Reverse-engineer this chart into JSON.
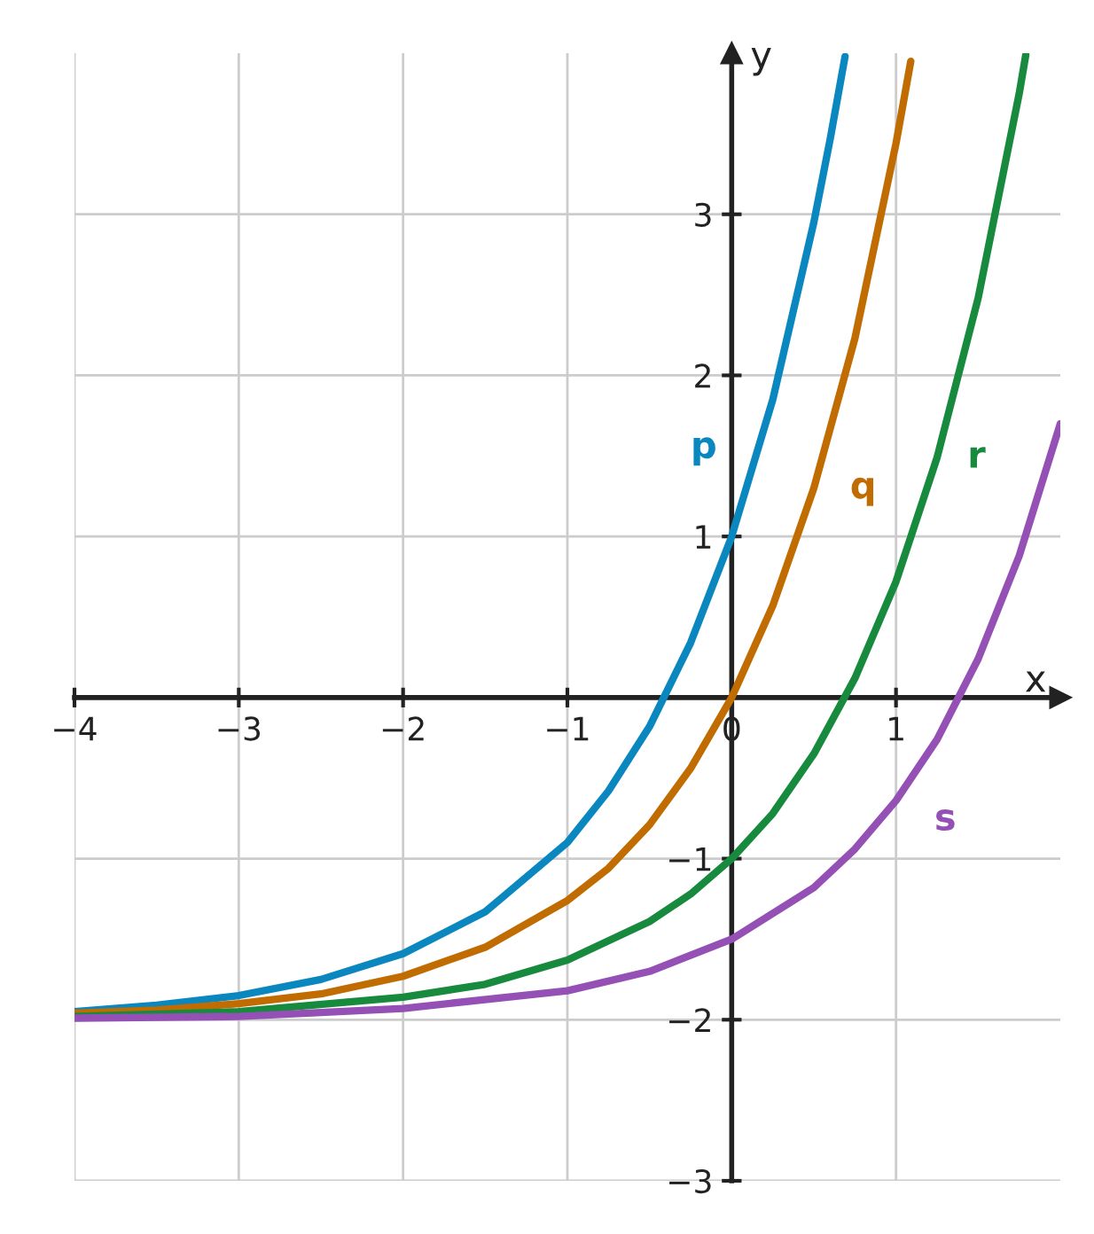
{
  "chart_data": {
    "type": "line",
    "xlabel": "x",
    "ylabel": "y",
    "xlim": [
      -4,
      2
    ],
    "ylim": [
      -3,
      4
    ],
    "xticks": [
      {
        "value": -4,
        "label": "−4"
      },
      {
        "value": -3,
        "label": "−3"
      },
      {
        "value": -2,
        "label": "−2"
      },
      {
        "value": -1,
        "label": "−1"
      },
      {
        "value": 0,
        "label": "0"
      },
      1
    ],
    "yticks": [
      {
        "value": -3,
        "label": "−3"
      },
      {
        "value": -2,
        "label": "−2"
      },
      {
        "value": -1,
        "label": "−1"
      },
      1,
      2,
      3
    ],
    "grid": true,
    "legend": false,
    "marker": "none",
    "line_style": "solid",
    "series": [
      {
        "name": "p",
        "color": "#0a87bf",
        "x": [
          -4,
          -3.5,
          -3,
          -2.5,
          -2,
          -1.5,
          -1,
          -0.75,
          -0.5,
          -0.25,
          0,
          0.25,
          0.5,
          0.6,
          0.69
        ],
        "values": [
          -1.95,
          -1.91,
          -1.85,
          -1.75,
          -1.59,
          -1.33,
          -0.9,
          -0.58,
          -0.18,
          0.34,
          1.0,
          1.85,
          2.95,
          3.47,
          3.98
        ]
      },
      {
        "name": "q",
        "color": "#c06c00",
        "x": [
          -4,
          -3.5,
          -3,
          -2.5,
          -2,
          -1.5,
          -1,
          -0.75,
          -0.5,
          -0.25,
          0,
          0.25,
          0.5,
          0.75,
          1,
          1.09
        ],
        "values": [
          -1.96,
          -1.94,
          -1.9,
          -1.84,
          -1.73,
          -1.55,
          -1.26,
          -1.06,
          -0.79,
          -0.44,
          0.0,
          0.57,
          1.3,
          2.23,
          3.44,
          3.95
        ]
      },
      {
        "name": "r",
        "color": "#178a3e",
        "x": [
          -4,
          -3,
          -2,
          -1.5,
          -1,
          -0.5,
          -0.25,
          0,
          0.25,
          0.5,
          0.75,
          1,
          1.25,
          1.5,
          1.75,
          1.79
        ],
        "values": [
          -1.98,
          -1.95,
          -1.86,
          -1.78,
          -1.63,
          -1.39,
          -1.22,
          -1.0,
          -0.72,
          -0.35,
          0.12,
          0.72,
          1.49,
          2.48,
          3.75,
          3.99
        ]
      },
      {
        "name": "s",
        "color": "#9450b4",
        "x": [
          -4,
          -3,
          -2,
          -1,
          -0.5,
          0,
          0.5,
          0.75,
          1,
          1.25,
          1.5,
          1.75,
          2
        ],
        "values": [
          -1.99,
          -1.98,
          -1.93,
          -1.82,
          -1.7,
          -1.5,
          -1.18,
          -0.94,
          -0.64,
          -0.26,
          0.24,
          0.88,
          1.7
        ]
      }
    ]
  }
}
